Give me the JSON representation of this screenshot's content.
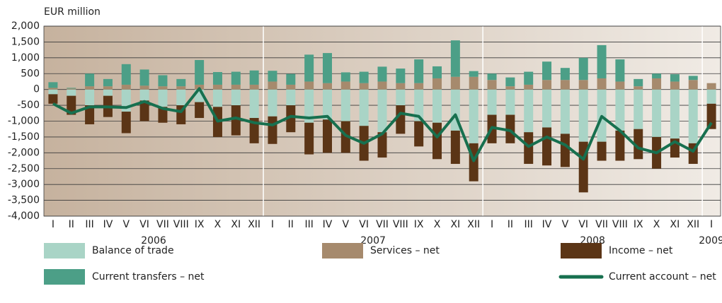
{
  "chart_data": {
    "type": "bar",
    "y_axis_label": "EUR million",
    "categories": [
      "I",
      "II",
      "III",
      "IV",
      "V",
      "VI",
      "VII",
      "VIII",
      "IX",
      "X",
      "XI",
      "XII",
      "I",
      "II",
      "III",
      "IV",
      "V",
      "VI",
      "VII",
      "VIII",
      "IX",
      "X",
      "XI",
      "XII",
      "I",
      "II",
      "III",
      "IV",
      "V",
      "VI",
      "VII",
      "VIII",
      "IX",
      "X",
      "XI",
      "XII",
      "I"
    ],
    "year_labels": [
      "2006",
      "2007",
      "2008",
      "2009"
    ],
    "stacked": true,
    "series": [
      {
        "name": "Balance of trade",
        "color": "#a9d4c6",
        "values": [
          -150,
          -200,
          -500,
          -200,
          -700,
          -350,
          -550,
          -500,
          -400,
          -550,
          -500,
          -900,
          -850,
          -500,
          -1050,
          -950,
          -1000,
          -1150,
          -1350,
          -500,
          -1000,
          -1050,
          -1300,
          -1700,
          -800,
          -800,
          -1350,
          -1200,
          -1400,
          -1650,
          -1650,
          -1300,
          -1250,
          -1500,
          -1550,
          -1700,
          -450
        ]
      },
      {
        "name": "Services – net",
        "color": "#a68a6d",
        "values": [
          50,
          30,
          100,
          100,
          150,
          120,
          100,
          100,
          150,
          150,
          150,
          150,
          250,
          150,
          250,
          200,
          250,
          200,
          250,
          200,
          200,
          350,
          400,
          400,
          300,
          100,
          150,
          300,
          300,
          300,
          350,
          250,
          100,
          350,
          250,
          300,
          200
        ]
      },
      {
        "name": "Income – net",
        "color": "#5b3516",
        "values": [
          -300,
          -600,
          -600,
          -670,
          -680,
          -650,
          -500,
          -600,
          -500,
          -950,
          -950,
          -800,
          -870,
          -850,
          -1000,
          -1050,
          -1000,
          -1100,
          -800,
          -900,
          -800,
          -1150,
          -1050,
          -1200,
          -900,
          -900,
          -1000,
          -1200,
          -1050,
          -1600,
          -600,
          -950,
          -950,
          -1000,
          -600,
          -650,
          -800
        ]
      },
      {
        "name": "Current transfers – net",
        "color": "#4c9f87",
        "values": [
          180,
          20,
          400,
          230,
          650,
          510,
          350,
          230,
          780,
          400,
          410,
          450,
          340,
          340,
          850,
          950,
          290,
          360,
          470,
          460,
          750,
          380,
          1150,
          180,
          200,
          280,
          410,
          580,
          380,
          700,
          1050,
          700,
          230,
          150,
          230,
          130,
          0
        ]
      },
      {
        "name": "Current account – net",
        "type": "line",
        "color": "#17704f",
        "values": [
          -450,
          -750,
          -550,
          -550,
          -570,
          -380,
          -600,
          -700,
          30,
          -1000,
          -900,
          -1050,
          -1120,
          -850,
          -900,
          -850,
          -1450,
          -1700,
          -1400,
          -750,
          -850,
          -1500,
          -800,
          -2250,
          -1200,
          -1300,
          -1800,
          -1500,
          -1750,
          -2200,
          -850,
          -1300,
          -1850,
          -2000,
          -1650,
          -1950,
          -1050
        ]
      }
    ],
    "ylim": [
      -4000,
      2000
    ],
    "yticks": [
      {
        "value": 2000,
        "label": "2,000"
      },
      {
        "value": 1500,
        "label": "1,500"
      },
      {
        "value": 1000,
        "label": "1,000"
      },
      500,
      0,
      -500,
      {
        "value": -1000,
        "label": "-1,000"
      },
      {
        "value": -1500,
        "label": "-1,500"
      },
      {
        "value": -2000,
        "label": "-2,000"
      },
      {
        "value": -2500,
        "label": "-2,500"
      },
      {
        "value": -3000,
        "label": "-3,000"
      },
      {
        "value": -3500,
        "label": "-3,500"
      },
      {
        "value": -4000,
        "label": "-4,000"
      }
    ],
    "grid": true
  }
}
